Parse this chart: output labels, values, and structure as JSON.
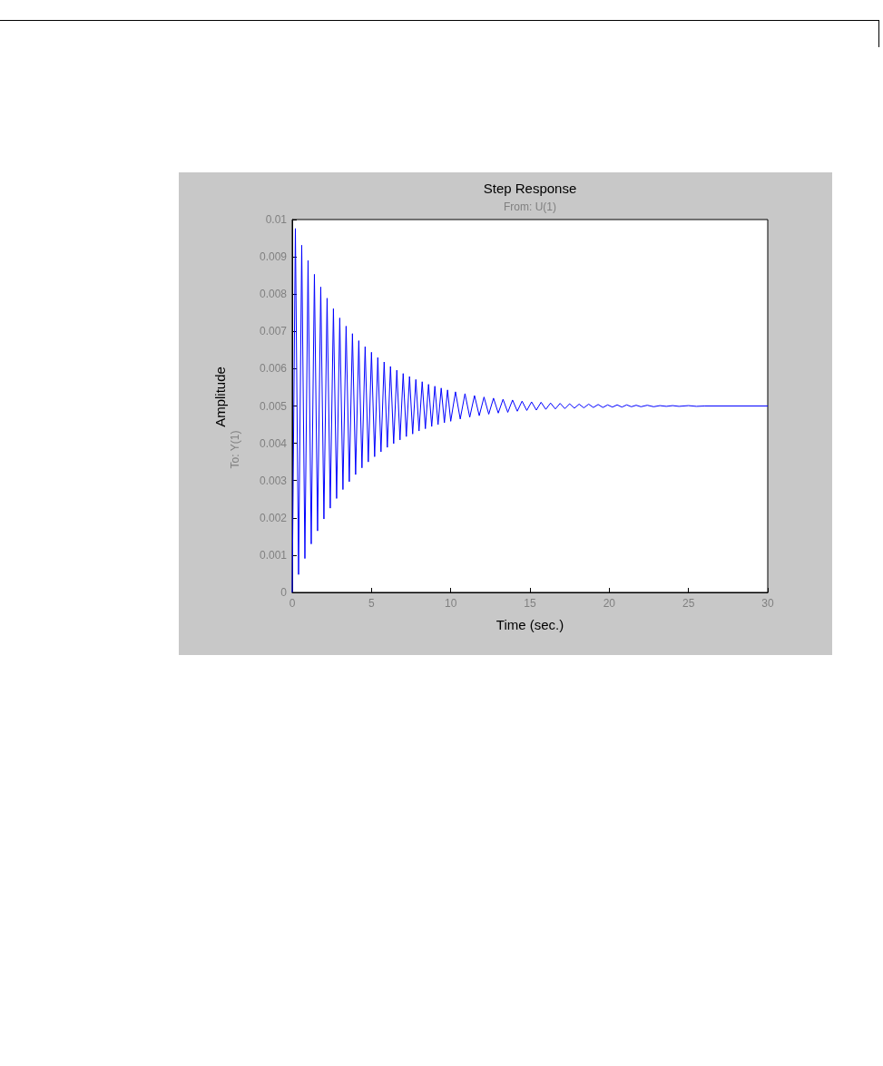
{
  "chart_data": {
    "type": "line",
    "title": "Step Response",
    "subtitle": "From: U(1)",
    "xlabel": "Time (sec.)",
    "ylabel": "Amplitude",
    "annotations": [
      "To: Y(1)"
    ],
    "x": [
      0,
      0.2,
      0.4,
      0.6,
      0.8,
      1.0,
      1.2,
      1.4,
      1.6,
      1.8,
      2.0,
      2.2,
      2.4,
      2.6,
      2.8,
      3.0,
      3.2,
      3.4,
      3.6,
      3.8,
      4.0,
      4.2,
      4.4,
      4.6,
      4.8,
      5.0,
      5.2,
      5.4,
      5.6,
      5.8,
      6.0,
      6.2,
      6.4,
      6.6,
      6.8,
      7.0,
      7.2,
      7.4,
      7.6,
      7.8,
      8.0,
      8.2,
      8.4,
      8.6,
      8.8,
      9.0,
      9.2,
      9.4,
      9.6,
      9.8,
      10.0,
      10.3,
      10.6,
      10.9,
      11.2,
      11.5,
      11.8,
      12.1,
      12.4,
      12.7,
      13.0,
      13.3,
      13.6,
      13.9,
      14.2,
      14.5,
      14.8,
      15.1,
      15.4,
      15.7,
      16.0,
      16.3,
      16.6,
      16.9,
      17.2,
      17.5,
      17.8,
      18.1,
      18.4,
      18.7,
      19.0,
      19.3,
      19.6,
      19.9,
      20.2,
      20.5,
      20.8,
      21.1,
      21.4,
      21.7,
      22.0,
      22.4,
      22.8,
      23.2,
      23.6,
      24.0,
      24.4,
      25.0,
      25.5,
      26.0,
      30.0
    ],
    "series": [
      {
        "color": "#0000ff",
        "values": [
          0,
          0.00976,
          0.00048,
          0.00931,
          0.00091,
          0.0089,
          0.0013,
          0.00853,
          0.00165,
          0.00819,
          0.00197,
          0.00789,
          0.00226,
          0.00761,
          0.00252,
          0.00736,
          0.00276,
          0.00714,
          0.00297,
          0.00694,
          0.00316,
          0.00675,
          0.00334,
          0.00659,
          0.0035,
          0.00644,
          0.00364,
          0.0063,
          0.00377,
          0.00618,
          0.00389,
          0.00606,
          0.00399,
          0.00596,
          0.00409,
          0.00587,
          0.00418,
          0.00579,
          0.00425,
          0.00571,
          0.00433,
          0.00565,
          0.00439,
          0.00558,
          0.00445,
          0.00553,
          0.0045,
          0.00548,
          0.00455,
          0.00543,
          0.00459,
          0.00538,
          0.00465,
          0.00533,
          0.0047,
          0.00528,
          0.00474,
          0.00524,
          0.00478,
          0.00521,
          0.00481,
          0.00518,
          0.00483,
          0.00516,
          0.00486,
          0.00513,
          0.00488,
          0.00511,
          0.00489,
          0.0051,
          0.00491,
          0.00508,
          0.00492,
          0.00507,
          0.00493,
          0.00506,
          0.00494,
          0.00505,
          0.00495,
          0.00505,
          0.00496,
          0.00504,
          0.00496,
          0.00503,
          0.00497,
          0.00503,
          0.00497,
          0.00503,
          0.00498,
          0.00502,
          0.00498,
          0.00502,
          0.00498,
          0.00501,
          0.00499,
          0.00501,
          0.00499,
          0.00501,
          0.00499,
          0.005,
          0.005
        ]
      }
    ],
    "xlim": [
      0,
      30
    ],
    "xticks": [
      0,
      5,
      10,
      15,
      20,
      25,
      30
    ],
    "ylim": [
      0,
      0.01
    ],
    "yticks": [
      0,
      0.001,
      0.002,
      0.003,
      0.004,
      0.005,
      0.006,
      0.007,
      0.008,
      0.009,
      0.01
    ],
    "marker": "none",
    "line_style": "solid"
  }
}
